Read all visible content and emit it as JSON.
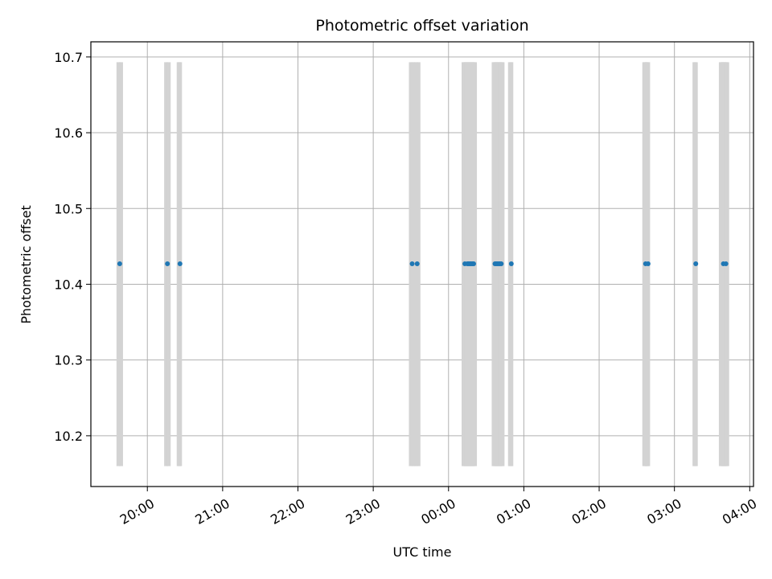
{
  "chart_data": {
    "type": "scatter",
    "title": "Photometric offset variation",
    "xlabel": "UTC time",
    "ylabel": "Photometric offset",
    "x_ticks": [
      "20:00",
      "21:00",
      "22:00",
      "23:00",
      "00:00",
      "01:00",
      "02:00",
      "03:00",
      "04:00"
    ],
    "y_ticks": [
      "10.2",
      "10.3",
      "10.4",
      "10.5",
      "10.6",
      "10.7"
    ],
    "xlim": [
      "19:15",
      "04:03"
    ],
    "ylim": [
      10.133,
      10.72
    ],
    "grid": true,
    "marker_color": "#1f77b4",
    "band_color": "#d3d3d3",
    "bands": {
      "y_range": [
        10.16,
        10.693
      ],
      "x": [
        "19:37",
        "19:39",
        "20:15",
        "20:17",
        "20:25",
        "20:26",
        "23:30",
        "23:32",
        "23:34",
        "23:36",
        "00:12",
        "00:13",
        "00:14",
        "00:15",
        "00:16",
        "00:17",
        "00:18",
        "00:19",
        "00:20",
        "00:21",
        "00:36",
        "00:37",
        "00:38",
        "00:39",
        "00:40",
        "00:41",
        "00:42",
        "00:43",
        "00:49",
        "00:50",
        "02:36",
        "02:37",
        "02:38",
        "02:39",
        "03:16",
        "03:17",
        "03:37",
        "03:38",
        "03:39",
        "03:40",
        "03:41",
        "03:42"
      ]
    },
    "series": [
      {
        "x": [
          "19:38",
          "20:16",
          "20:26",
          "23:31",
          "23:35",
          "00:13",
          "00:15",
          "00:16",
          "00:17",
          "00:18",
          "00:19",
          "00:20",
          "00:37",
          "00:38",
          "00:39",
          "00:40",
          "00:41",
          "00:42",
          "00:50",
          "02:37",
          "02:39",
          "03:17",
          "03:39",
          "03:41"
        ],
        "y": [
          10.427,
          10.427,
          10.427,
          10.427,
          10.427,
          10.427,
          10.427,
          10.427,
          10.427,
          10.427,
          10.427,
          10.427,
          10.427,
          10.427,
          10.427,
          10.427,
          10.427,
          10.427,
          10.427,
          10.427,
          10.427,
          10.427,
          10.427,
          10.427
        ]
      }
    ]
  }
}
